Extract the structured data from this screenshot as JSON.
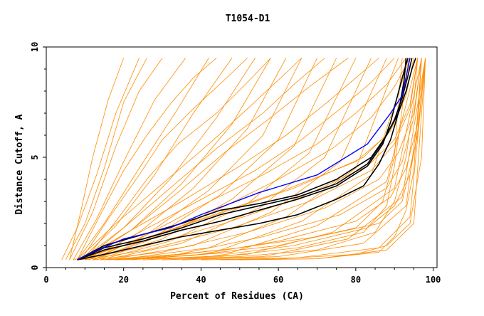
{
  "chart_data": {
    "type": "line",
    "title": "T1054-D1",
    "xlabel": "Percent of Residues (CA)",
    "ylabel": "Distance Cutoff, A",
    "xlim": [
      0,
      101
    ],
    "ylim": [
      0,
      10
    ],
    "x_ticks": [
      0,
      20,
      40,
      60,
      80,
      100
    ],
    "y_ticks": [
      0,
      5,
      10
    ],
    "x_tick_labels": [
      "0",
      "20",
      "40",
      "60",
      "80",
      "100"
    ],
    "y_tick_labels": [
      "0",
      "5",
      "10"
    ],
    "grid": false,
    "legend": "none",
    "colors": {
      "many_models": "#ff8c00",
      "highlight_black": "#000000",
      "highlight_blue": "#0000ff"
    },
    "series": [
      {
        "group": "highlight_blue",
        "color": "#0000ff",
        "x": [
          8,
          12,
          20,
          32,
          40,
          55,
          70,
          83,
          86,
          89,
          92,
          94
        ],
        "y": [
          0.35,
          0.7,
          1.3,
          1.8,
          2.4,
          3.4,
          4.2,
          5.6,
          6.3,
          7.0,
          7.8,
          9.5
        ]
      },
      {
        "group": "highlight_black",
        "color": "#000000",
        "x": [
          8,
          15,
          25,
          35,
          45,
          55,
          65,
          75,
          82,
          86,
          89,
          91,
          92.5,
          93
        ],
        "y": [
          0.35,
          0.6,
          1.0,
          1.4,
          1.7,
          2.0,
          2.4,
          3.1,
          3.7,
          4.7,
          5.8,
          7.0,
          8.5,
          9.5
        ]
      },
      {
        "group": "highlight_black",
        "color": "#000000",
        "x": [
          8,
          15,
          25,
          35,
          45,
          55,
          65,
          75,
          83,
          87,
          89,
          90.5,
          92,
          93.5
        ],
        "y": [
          0.35,
          0.8,
          1.2,
          1.7,
          2.1,
          2.6,
          3.1,
          3.7,
          4.6,
          5.6,
          6.6,
          7.6,
          8.6,
          9.5
        ]
      },
      {
        "group": "highlight_black",
        "color": "#000000",
        "x": [
          8,
          15,
          25,
          35,
          45,
          55,
          65,
          75,
          83,
          87,
          90,
          92,
          93.5,
          94.5
        ],
        "y": [
          0.35,
          0.9,
          1.3,
          1.8,
          2.4,
          2.8,
          3.2,
          3.8,
          4.7,
          5.7,
          6.7,
          7.7,
          8.7,
          9.5
        ]
      },
      {
        "group": "highlight_black",
        "color": "#000000",
        "x": [
          8,
          15,
          25,
          35,
          45,
          55,
          65,
          75,
          84,
          88,
          91,
          93,
          94.5,
          95.5
        ],
        "y": [
          0.35,
          1.0,
          1.5,
          2.0,
          2.6,
          2.9,
          3.3,
          4.0,
          5.0,
          6.0,
          7.0,
          8.0,
          9.0,
          9.5
        ]
      },
      {
        "group": "many_models",
        "color": "#ff8c00",
        "x": [
          5,
          10,
          15,
          20,
          26
        ],
        "y": [
          0.35,
          2.0,
          4.5,
          7.5,
          9.5
        ]
      },
      {
        "group": "many_models",
        "color": "#ff8c00",
        "x": [
          6,
          12,
          18,
          24,
          30
        ],
        "y": [
          0.35,
          2.5,
          5.5,
          8.0,
          9.5
        ]
      },
      {
        "group": "many_models",
        "color": "#ff8c00",
        "x": [
          7,
          13,
          20,
          28,
          36
        ],
        "y": [
          0.35,
          2.2,
          4.8,
          7.6,
          9.5
        ]
      },
      {
        "group": "many_models",
        "color": "#ff8c00",
        "x": [
          8,
          15,
          24,
          34,
          42
        ],
        "y": [
          0.35,
          2.0,
          4.5,
          7.2,
          9.5
        ]
      },
      {
        "group": "many_models",
        "color": "#ff8c00",
        "x": [
          9,
          18,
          28,
          38,
          48
        ],
        "y": [
          0.35,
          1.9,
          4.2,
          7.0,
          9.5
        ]
      },
      {
        "group": "many_models",
        "color": "#ff8c00",
        "x": [
          10,
          20,
          32,
          44,
          54
        ],
        "y": [
          0.35,
          1.8,
          4.0,
          6.8,
          9.5
        ]
      },
      {
        "group": "many_models",
        "color": "#ff8c00",
        "x": [
          10,
          22,
          35,
          48,
          58
        ],
        "y": [
          0.35,
          1.7,
          3.8,
          6.5,
          9.5
        ]
      },
      {
        "group": "many_models",
        "color": "#ff8c00",
        "x": [
          11,
          24,
          38,
          52,
          62
        ],
        "y": [
          0.35,
          1.6,
          3.6,
          6.3,
          9.5
        ]
      },
      {
        "group": "many_models",
        "color": "#ff8c00",
        "x": [
          12,
          26,
          42,
          56,
          66
        ],
        "y": [
          0.35,
          1.5,
          3.5,
          6.0,
          9.5
        ]
      },
      {
        "group": "many_models",
        "color": "#ff8c00",
        "x": [
          12,
          28,
          45,
          60,
          70
        ],
        "y": [
          0.35,
          1.4,
          3.3,
          5.8,
          9.5
        ]
      },
      {
        "group": "many_models",
        "color": "#ff8c00",
        "x": [
          13,
          30,
          48,
          64,
          75
        ],
        "y": [
          0.35,
          1.3,
          3.1,
          5.5,
          9.5
        ]
      },
      {
        "group": "many_models",
        "color": "#ff8c00",
        "x": [
          14,
          32,
          52,
          68,
          80
        ],
        "y": [
          0.35,
          1.2,
          2.9,
          5.2,
          9.5
        ]
      },
      {
        "group": "many_models",
        "color": "#ff8c00",
        "x": [
          15,
          35,
          55,
          72,
          84
        ],
        "y": [
          0.35,
          1.1,
          2.7,
          5.0,
          9.5
        ]
      },
      {
        "group": "many_models",
        "color": "#ff8c00",
        "x": [
          16,
          38,
          58,
          76,
          88
        ],
        "y": [
          0.35,
          1.0,
          2.5,
          4.8,
          9.5
        ]
      },
      {
        "group": "many_models",
        "color": "#ff8c00",
        "x": [
          18,
          42,
          62,
          80,
          91
        ],
        "y": [
          0.35,
          0.9,
          2.3,
          4.5,
          9.5
        ]
      },
      {
        "group": "many_models",
        "color": "#ff8c00",
        "x": [
          20,
          45,
          66,
          84,
          94
        ],
        "y": [
          0.35,
          0.8,
          2.1,
          4.2,
          9.5
        ]
      },
      {
        "group": "many_models",
        "color": "#ff8c00",
        "x": [
          22,
          48,
          70,
          88,
          96
        ],
        "y": [
          0.35,
          0.7,
          1.9,
          3.9,
          9.5
        ]
      },
      {
        "group": "many_models",
        "color": "#ff8c00",
        "x": [
          25,
          52,
          74,
          90,
          97
        ],
        "y": [
          0.35,
          0.6,
          1.6,
          3.6,
          9.5
        ]
      },
      {
        "group": "many_models",
        "color": "#ff8c00",
        "x": [
          30,
          56,
          78,
          92,
          98
        ],
        "y": [
          0.35,
          0.5,
          1.3,
          3.2,
          9.5
        ]
      },
      {
        "group": "many_models",
        "color": "#ff8c00",
        "x": [
          35,
          60,
          82,
          93,
          98
        ],
        "y": [
          0.35,
          0.5,
          1.1,
          2.8,
          9.5
        ]
      },
      {
        "group": "many_models",
        "color": "#ff8c00",
        "x": [
          40,
          65,
          86,
          94,
          98
        ],
        "y": [
          0.35,
          0.45,
          0.9,
          2.3,
          9.5
        ]
      },
      {
        "group": "many_models",
        "color": "#ff8c00",
        "x": [
          45,
          70,
          88,
          95,
          98
        ],
        "y": [
          0.35,
          0.4,
          0.8,
          2.0,
          9.5
        ]
      },
      {
        "group": "many_models",
        "color": "#ff8c00",
        "x": [
          7,
          20,
          40,
          60,
          80,
          88,
          92,
          94
        ],
        "y": [
          0.35,
          1.0,
          2.2,
          3.4,
          4.8,
          6.0,
          7.5,
          9.5
        ]
      },
      {
        "group": "many_models",
        "color": "#ff8c00",
        "x": [
          8,
          22,
          44,
          64,
          82,
          89,
          93,
          95
        ],
        "y": [
          0.35,
          1.1,
          2.4,
          3.6,
          5.0,
          6.2,
          7.8,
          9.5
        ]
      },
      {
        "group": "many_models",
        "color": "#ff8c00",
        "x": [
          9,
          24,
          46,
          66,
          83,
          90,
          94,
          96
        ],
        "y": [
          0.35,
          0.9,
          2.0,
          3.2,
          4.6,
          5.8,
          7.4,
          9.5
        ]
      },
      {
        "group": "many_models",
        "color": "#ff8c00",
        "x": [
          10,
          26,
          48,
          68,
          84,
          90,
          94,
          96
        ],
        "y": [
          0.35,
          0.8,
          1.8,
          3.0,
          4.4,
          5.6,
          7.2,
          9.5
        ]
      },
      {
        "group": "many_models",
        "color": "#ff8c00",
        "x": [
          12,
          30,
          52,
          72,
          86,
          91,
          95,
          97
        ],
        "y": [
          0.35,
          0.7,
          1.6,
          2.7,
          4.0,
          5.2,
          7.0,
          9.5
        ]
      },
      {
        "group": "many_models",
        "color": "#ff8c00",
        "x": [
          14,
          34,
          56,
          76,
          88,
          92,
          95,
          97
        ],
        "y": [
          0.35,
          0.6,
          1.4,
          2.4,
          3.6,
          4.8,
          6.8,
          9.5
        ]
      },
      {
        "group": "many_models",
        "color": "#ff8c00",
        "x": [
          16,
          38,
          60,
          80,
          89,
          93,
          96,
          97
        ],
        "y": [
          0.35,
          0.55,
          1.2,
          2.1,
          3.2,
          4.5,
          6.5,
          9.5
        ]
      },
      {
        "group": "many_models",
        "color": "#ff8c00",
        "x": [
          18,
          42,
          64,
          83,
          90,
          94,
          96,
          98
        ],
        "y": [
          0.35,
          0.5,
          1.0,
          1.8,
          2.8,
          4.2,
          6.2,
          9.5
        ]
      },
      {
        "group": "many_models",
        "color": "#ff8c00",
        "x": [
          9,
          20,
          35,
          50,
          62,
          72,
          80,
          86
        ],
        "y": [
          0.35,
          1.5,
          3.0,
          4.6,
          6.0,
          7.4,
          8.6,
          9.5
        ]
      },
      {
        "group": "many_models",
        "color": "#ff8c00",
        "x": [
          10,
          22,
          38,
          54,
          66,
          76,
          84,
          90
        ],
        "y": [
          0.35,
          1.4,
          2.9,
          4.4,
          5.8,
          7.2,
          8.4,
          9.5
        ]
      },
      {
        "group": "many_models",
        "color": "#ff8c00",
        "x": [
          11,
          24,
          40,
          56,
          70,
          80,
          88,
          93
        ],
        "y": [
          0.35,
          1.3,
          2.8,
          4.2,
          5.6,
          7.0,
          8.3,
          9.5
        ]
      },
      {
        "group": "many_models",
        "color": "#ff8c00",
        "x": [
          12,
          26,
          44,
          60,
          74,
          84,
          90,
          94
        ],
        "y": [
          0.35,
          1.2,
          2.6,
          4.0,
          5.4,
          6.8,
          8.2,
          9.5
        ]
      },
      {
        "group": "many_models",
        "color": "#ff8c00",
        "x": [
          8,
          18,
          30,
          42,
          52,
          60,
          66
        ],
        "y": [
          0.35,
          2.0,
          3.8,
          5.6,
          7.2,
          8.5,
          9.5
        ]
      },
      {
        "group": "many_models",
        "color": "#ff8c00",
        "x": [
          9,
          20,
          32,
          44,
          56,
          64,
          72
        ],
        "y": [
          0.35,
          1.8,
          3.6,
          5.4,
          7.0,
          8.3,
          9.5
        ]
      },
      {
        "group": "many_models",
        "color": "#ff8c00",
        "x": [
          10,
          22,
          34,
          46,
          58,
          68,
          78
        ],
        "y": [
          0.35,
          1.7,
          3.4,
          5.2,
          6.8,
          8.2,
          9.5
        ]
      },
      {
        "group": "many_models",
        "color": "#ff8c00",
        "x": [
          8,
          14,
          20,
          26,
          32,
          38,
          44
        ],
        "y": [
          0.35,
          2.4,
          4.4,
          6.0,
          7.4,
          8.6,
          9.5
        ]
      },
      {
        "group": "many_models",
        "color": "#ff8c00",
        "x": [
          9,
          16,
          24,
          30,
          38,
          46,
          52
        ],
        "y": [
          0.35,
          2.2,
          4.2,
          5.8,
          7.2,
          8.5,
          9.5
        ]
      },
      {
        "group": "many_models",
        "color": "#ff8c00",
        "x": [
          10,
          18,
          26,
          34,
          44,
          52,
          58
        ],
        "y": [
          0.35,
          2.1,
          4.0,
          5.6,
          7.0,
          8.4,
          9.5
        ]
      },
      {
        "group": "many_models",
        "color": "#ff8c00",
        "x": [
          6,
          9,
          12,
          16,
          20
        ],
        "y": [
          0.35,
          2.6,
          5.0,
          7.6,
          9.5
        ]
      },
      {
        "group": "many_models",
        "color": "#ff8c00",
        "x": [
          4,
          8,
          13,
          18,
          24
        ],
        "y": [
          0.35,
          1.8,
          4.2,
          7.0,
          9.5
        ]
      },
      {
        "group": "many_models",
        "color": "#ff8c00",
        "x": [
          30,
          50,
          70,
          85,
          90,
          93,
          95,
          96
        ],
        "y": [
          0.35,
          0.5,
          0.8,
          1.6,
          3.0,
          5.0,
          7.5,
          9.5
        ]
      },
      {
        "group": "many_models",
        "color": "#ff8c00",
        "x": [
          50,
          70,
          86,
          90,
          93,
          95,
          96,
          97
        ],
        "y": [
          0.35,
          0.4,
          0.7,
          1.4,
          2.6,
          4.4,
          7.0,
          9.5
        ]
      },
      {
        "group": "many_models",
        "color": "#ff8c00",
        "x": [
          20,
          40,
          60,
          80,
          87,
          90,
          91,
          92
        ],
        "y": [
          0.35,
          0.6,
          1.0,
          1.8,
          3.0,
          5.0,
          7.5,
          9.5
        ]
      },
      {
        "group": "many_models",
        "color": "#ff8c00",
        "x": [
          25,
          45,
          65,
          82,
          88,
          90,
          92,
          93
        ],
        "y": [
          0.35,
          0.5,
          0.9,
          1.6,
          2.8,
          4.6,
          7.2,
          9.5
        ]
      },
      {
        "group": "many_models",
        "color": "#ff8c00",
        "x": [
          15,
          30,
          50,
          70,
          86,
          92,
          96,
          98
        ],
        "y": [
          0.35,
          0.5,
          0.9,
          1.4,
          2.0,
          3.0,
          6.0,
          9.5
        ]
      },
      {
        "group": "many_models",
        "color": "#ff8c00",
        "x": [
          40,
          60,
          80,
          88,
          94,
          97,
          98
        ],
        "y": [
          0.35,
          0.4,
          0.6,
          1.0,
          2.0,
          5.0,
          9.5
        ]
      }
    ]
  }
}
